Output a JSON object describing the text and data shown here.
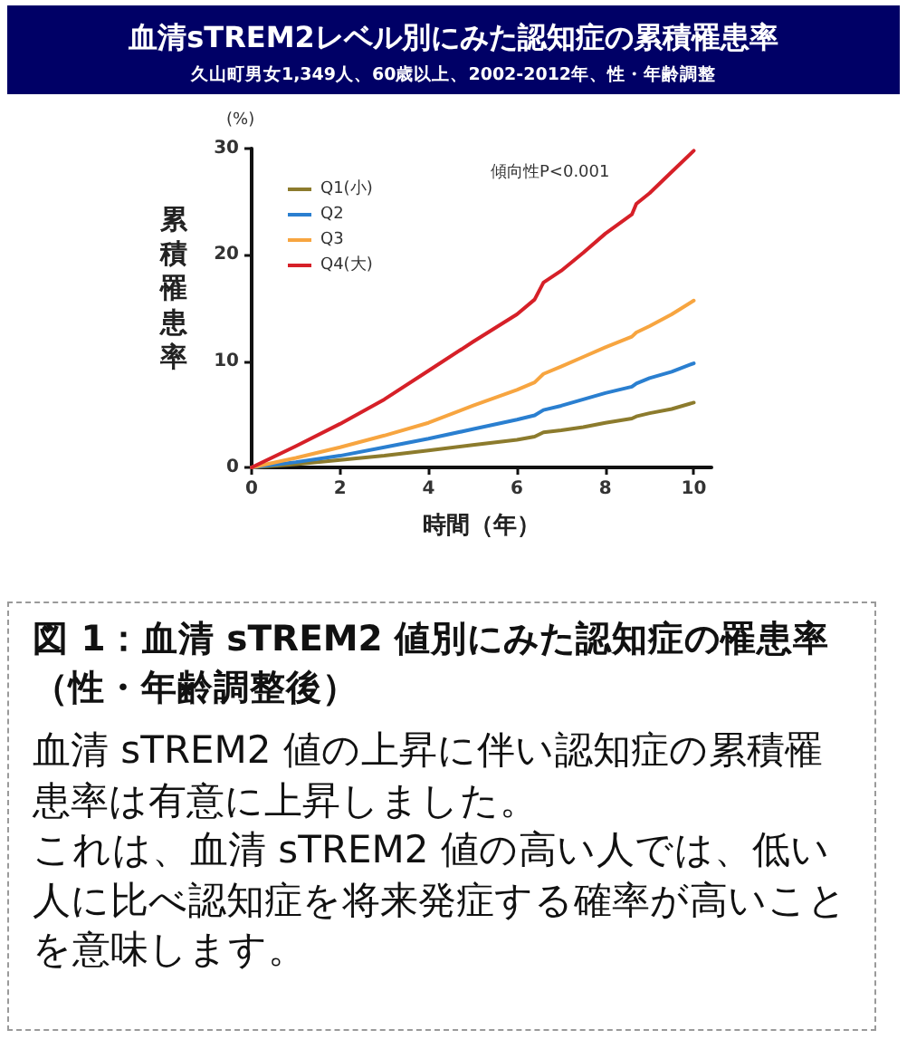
{
  "chart_data": {
    "type": "line",
    "title": "血清sTREM2レベル別にみた認知症の累積罹患率",
    "subtitle": "久山町男女1,349人、60歳以上、2002-2012年、性・年齢調整",
    "xlabel": "時間（年）",
    "ylabel": "累積罹患率",
    "annotations": [
      "(%)",
      "傾向性P<0.001",
      "図 1：血清 sTREM2 値別にみた認知症の罹患率（性・年齢調整後）",
      "血清 sTREM2 値の上昇に伴い認知症の累積罹患率は有意に上昇しました。",
      "これは、血清 sTREM2 値の高い人では、低い人に比べ認知症を将来発症する確率が高いことを意味します。"
    ],
    "x": [
      0,
      1,
      2,
      3,
      4,
      5,
      6,
      6.4,
      6.6,
      7,
      7.5,
      8,
      8.6,
      8.7,
      9,
      9.5,
      10
    ],
    "series": [
      {
        "name": "Q1(小)",
        "color": "#8c7b2d",
        "values": [
          0,
          0.3,
          0.7,
          1.1,
          1.6,
          2.1,
          2.6,
          2.9,
          3.3,
          3.5,
          3.8,
          4.2,
          4.6,
          4.8,
          5.1,
          5.5,
          6.1
        ]
      },
      {
        "name": "Q2",
        "color": "#2a7fd0",
        "values": [
          0,
          0.5,
          1.1,
          1.9,
          2.7,
          3.6,
          4.5,
          4.9,
          5.4,
          5.8,
          6.4,
          7.0,
          7.6,
          7.9,
          8.4,
          9.0,
          9.8
        ]
      },
      {
        "name": "Q3",
        "color": "#f7a540",
        "values": [
          0,
          0.9,
          1.9,
          3.0,
          4.2,
          5.8,
          7.3,
          8.0,
          8.8,
          9.5,
          10.4,
          11.3,
          12.3,
          12.7,
          13.3,
          14.4,
          15.7
        ]
      },
      {
        "name": "Q4(大)",
        "color": "#d62028",
        "values": [
          0,
          2.0,
          4.1,
          6.4,
          9.1,
          11.8,
          14.4,
          15.8,
          17.4,
          18.5,
          20.2,
          22.0,
          23.8,
          24.8,
          25.8,
          27.8,
          29.8
        ]
      }
    ],
    "xlim": [
      0,
      10.4
    ],
    "xticks": [
      0,
      2,
      4,
      6,
      8,
      10
    ],
    "ylim": [
      0,
      30
    ],
    "yticks": [
      0,
      10,
      20,
      30
    ],
    "legend": "top left"
  }
}
